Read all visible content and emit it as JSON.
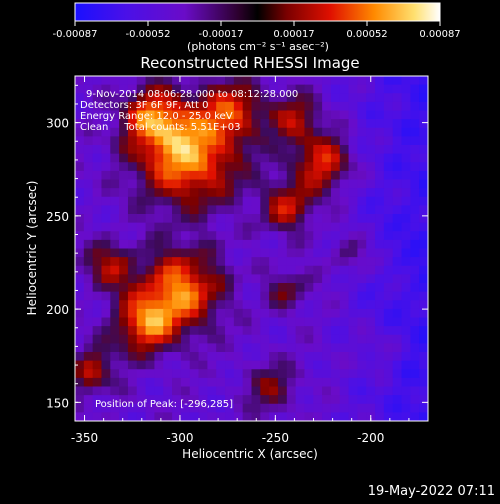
{
  "colorbar": {
    "tick_labels": [
      "-0.00087",
      "-0.00052",
      "-0.00017",
      "0.00017",
      "0.00052",
      "0.00087"
    ],
    "unit_label": "(photons cm⁻² s⁻¹ asec⁻²)",
    "colors": [
      "#1a10ff",
      "#6a0cc8",
      "#2b002b",
      "#000000",
      "#7a0000",
      "#e01000",
      "#ff8a00",
      "#ffe070",
      "#ffffff"
    ]
  },
  "title": "Reconstructed RHESSI Image",
  "info": {
    "line1": "9-Nov-2014 08:06:28.000 to 08:12:28.000",
    "line2": "Detectors: 3F 6F 9F, Att 0",
    "line3": "Energy Range: 12.0 - 25.0 keV",
    "line4": "Clean     Total counts: 5.51E+03"
  },
  "peak_label": "Position of Peak: [-296,285]",
  "axes": {
    "xlabel": "Heliocentric X (arcsec)",
    "ylabel": "Heliocentric Y (arcsec)",
    "x_ticks": [
      "-350",
      "-300",
      "-250",
      "-200"
    ],
    "y_ticks": [
      "150",
      "200",
      "250",
      "300"
    ],
    "xlim": [
      -355,
      -170
    ],
    "ylim": [
      140,
      325
    ]
  },
  "footer_date": "19-May-2022 07:11"
}
